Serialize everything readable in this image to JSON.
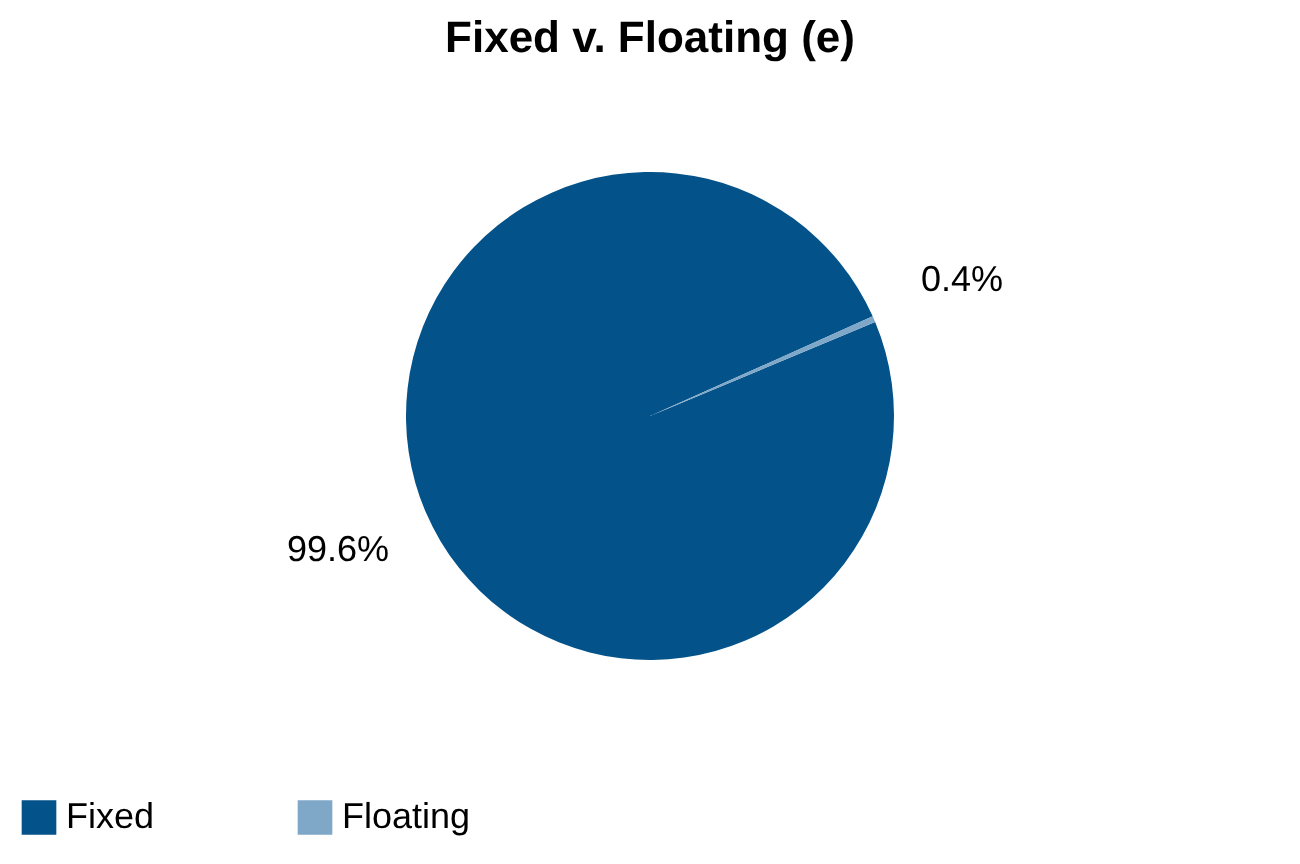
{
  "chart_data": {
    "type": "pie",
    "title": "Fixed v. Floating (e)",
    "categories": [
      "Fixed",
      "Floating"
    ],
    "values": [
      99.6,
      0.4
    ],
    "colors": [
      "#03528a",
      "#7fa7c8"
    ],
    "value_labels": [
      "99.6%",
      "0.4%"
    ],
    "legend": "bottom"
  }
}
